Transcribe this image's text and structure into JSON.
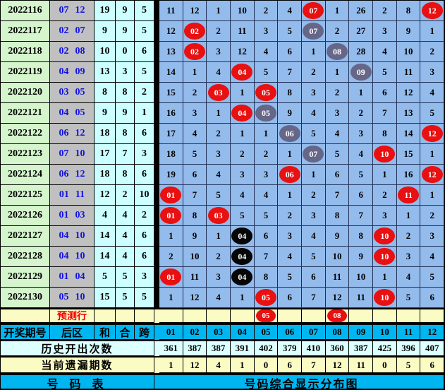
{
  "colors": {
    "grid_bg": "#93BBEC",
    "period_bg": "#D5F5CD",
    "backzone_bg": "#C0C0C0",
    "cyan_bg": "#CCFFFF",
    "pale_cyan_bg": "#DCFFFF",
    "pale_yellow_bg": "#FBFBC4",
    "header_blue": "#00B6F0",
    "ball_red": "#E81010",
    "ball_gray": "#666688",
    "ball_black": "#060606",
    "blue_text": "#1212E0",
    "red_text": "#F00000"
  },
  "left_table": {
    "header": {
      "period": "开奖期号",
      "back": "后区",
      "sum": "和",
      "he": "合",
      "span": "跨"
    },
    "rows": [
      {
        "period": "2022116",
        "back1": "07",
        "back2": "12",
        "sum": "19",
        "he": "9",
        "span": "5"
      },
      {
        "period": "2022117",
        "back1": "02",
        "back2": "07",
        "sum": "9",
        "he": "9",
        "span": "5"
      },
      {
        "period": "2022118",
        "back1": "02",
        "back2": "08",
        "sum": "10",
        "he": "0",
        "span": "6"
      },
      {
        "period": "2022119",
        "back1": "04",
        "back2": "09",
        "sum": "13",
        "he": "3",
        "span": "5"
      },
      {
        "period": "2022120",
        "back1": "03",
        "back2": "05",
        "sum": "8",
        "he": "8",
        "span": "2"
      },
      {
        "period": "2022121",
        "back1": "04",
        "back2": "05",
        "sum": "9",
        "he": "9",
        "span": "1"
      },
      {
        "period": "2022122",
        "back1": "06",
        "back2": "12",
        "sum": "18",
        "he": "8",
        "span": "6"
      },
      {
        "period": "2022123",
        "back1": "07",
        "back2": "10",
        "sum": "17",
        "he": "7",
        "span": "3"
      },
      {
        "period": "2022124",
        "back1": "06",
        "back2": "12",
        "sum": "18",
        "he": "8",
        "span": "6"
      },
      {
        "period": "2022125",
        "back1": "01",
        "back2": "11",
        "sum": "12",
        "he": "2",
        "span": "10"
      },
      {
        "period": "2022126",
        "back1": "01",
        "back2": "03",
        "sum": "4",
        "he": "4",
        "span": "2"
      },
      {
        "period": "2022127",
        "back1": "04",
        "back2": "10",
        "sum": "14",
        "he": "4",
        "span": "6"
      },
      {
        "period": "2022128",
        "back1": "04",
        "back2": "10",
        "sum": "14",
        "he": "4",
        "span": "6"
      },
      {
        "period": "2022129",
        "back1": "01",
        "back2": "04",
        "sum": "5",
        "he": "5",
        "span": "3"
      },
      {
        "period": "2022130",
        "back1": "05",
        "back2": "10",
        "sum": "15",
        "he": "5",
        "span": "5"
      }
    ],
    "prediction_label": "预测行",
    "history_label": "历史开出次数",
    "omission_label": "当前遗漏期数",
    "footer_label": "号 码 表"
  },
  "grid": {
    "columns": [
      "01",
      "02",
      "03",
      "04",
      "05",
      "06",
      "07",
      "08",
      "09",
      "10",
      "11",
      "12"
    ],
    "rows": [
      [
        "11",
        "12",
        "1",
        "10",
        "2",
        "4",
        "07:R",
        "1",
        "26",
        "2",
        "8",
        "12:R"
      ],
      [
        "12",
        "02:R",
        "2",
        "11",
        "3",
        "5",
        "07:G",
        "2",
        "27",
        "3",
        "9",
        "1"
      ],
      [
        "13",
        "02:R",
        "3",
        "12",
        "4",
        "6",
        "1",
        "08:G",
        "28",
        "4",
        "10",
        "2"
      ],
      [
        "14",
        "1",
        "4",
        "04:R",
        "5",
        "7",
        "2",
        "1",
        "09:G",
        "5",
        "11",
        "3"
      ],
      [
        "15",
        "2",
        "03:R",
        "1",
        "05:R",
        "8",
        "3",
        "2",
        "1",
        "6",
        "12",
        "4"
      ],
      [
        "16",
        "3",
        "1",
        "04:R",
        "05:G",
        "9",
        "4",
        "3",
        "2",
        "7",
        "13",
        "5"
      ],
      [
        "17",
        "4",
        "2",
        "1",
        "1",
        "06:G",
        "5",
        "4",
        "3",
        "8",
        "14",
        "12:R"
      ],
      [
        "18",
        "5",
        "3",
        "2",
        "2",
        "1",
        "07:G",
        "5",
        "4",
        "10:R",
        "15",
        "1"
      ],
      [
        "19",
        "6",
        "4",
        "3",
        "3",
        "06:R",
        "1",
        "6",
        "5",
        "1",
        "16",
        "12:R"
      ],
      [
        "01:R",
        "7",
        "5",
        "4",
        "4",
        "1",
        "2",
        "7",
        "6",
        "2",
        "11:R",
        "1"
      ],
      [
        "01:R",
        "8",
        "03:R",
        "5",
        "5",
        "2",
        "3",
        "8",
        "7",
        "3",
        "1",
        "2"
      ],
      [
        "1",
        "9",
        "1",
        "04:B",
        "6",
        "3",
        "4",
        "9",
        "8",
        "10:R",
        "2",
        "3"
      ],
      [
        "2",
        "10",
        "2",
        "04:B",
        "7",
        "4",
        "5",
        "10",
        "9",
        "10:R",
        "3",
        "4"
      ],
      [
        "01:R",
        "11",
        "3",
        "04:B",
        "8",
        "5",
        "6",
        "11",
        "10",
        "1",
        "4",
        "5"
      ],
      [
        "1",
        "12",
        "4",
        "1",
        "05:R",
        "6",
        "7",
        "12",
        "11",
        "10:R",
        "5",
        "6"
      ]
    ],
    "prediction_cells": [
      "",
      "",
      "",
      "",
      "05:R",
      "",
      "",
      "08:R",
      "",
      "",
      "",
      ""
    ],
    "history": [
      "361",
      "387",
      "387",
      "391",
      "402",
      "379",
      "410",
      "360",
      "387",
      "425",
      "396",
      "407"
    ],
    "omission": [
      "1",
      "12",
      "4",
      "1",
      "0",
      "6",
      "7",
      "12",
      "11",
      "0",
      "5",
      "6"
    ],
    "footer_label": "号码综合显示分布图"
  },
  "chart_data": {
    "type": "table",
    "title": "号码综合显示分布图",
    "number_columns": [
      "01",
      "02",
      "03",
      "04",
      "05",
      "06",
      "07",
      "08",
      "09",
      "10",
      "11",
      "12"
    ],
    "periods": [
      "2022116",
      "2022117",
      "2022118",
      "2022119",
      "2022120",
      "2022121",
      "2022122",
      "2022123",
      "2022124",
      "2022125",
      "2022126",
      "2022127",
      "2022128",
      "2022129",
      "2022130"
    ],
    "back_zone_draws": [
      [
        "07",
        "12"
      ],
      [
        "02",
        "07"
      ],
      [
        "02",
        "08"
      ],
      [
        "04",
        "09"
      ],
      [
        "03",
        "05"
      ],
      [
        "04",
        "05"
      ],
      [
        "06",
        "12"
      ],
      [
        "07",
        "10"
      ],
      [
        "06",
        "12"
      ],
      [
        "01",
        "11"
      ],
      [
        "01",
        "03"
      ],
      [
        "04",
        "10"
      ],
      [
        "04",
        "10"
      ],
      [
        "01",
        "04"
      ],
      [
        "05",
        "10"
      ]
    ],
    "sum": [
      19,
      9,
      10,
      13,
      8,
      9,
      18,
      17,
      18,
      12,
      4,
      14,
      14,
      5,
      15
    ],
    "tail": [
      9,
      9,
      0,
      3,
      8,
      9,
      8,
      7,
      8,
      2,
      4,
      4,
      4,
      5,
      5
    ],
    "span": [
      5,
      5,
      6,
      5,
      2,
      1,
      6,
      3,
      6,
      10,
      2,
      6,
      6,
      3,
      5
    ],
    "history_counts": [
      361,
      387,
      387,
      391,
      402,
      379,
      410,
      360,
      387,
      425,
      396,
      407
    ],
    "current_omission": [
      1,
      12,
      4,
      1,
      0,
      6,
      7,
      12,
      11,
      0,
      5,
      6
    ],
    "prediction_row": [
      "05",
      "08"
    ]
  }
}
